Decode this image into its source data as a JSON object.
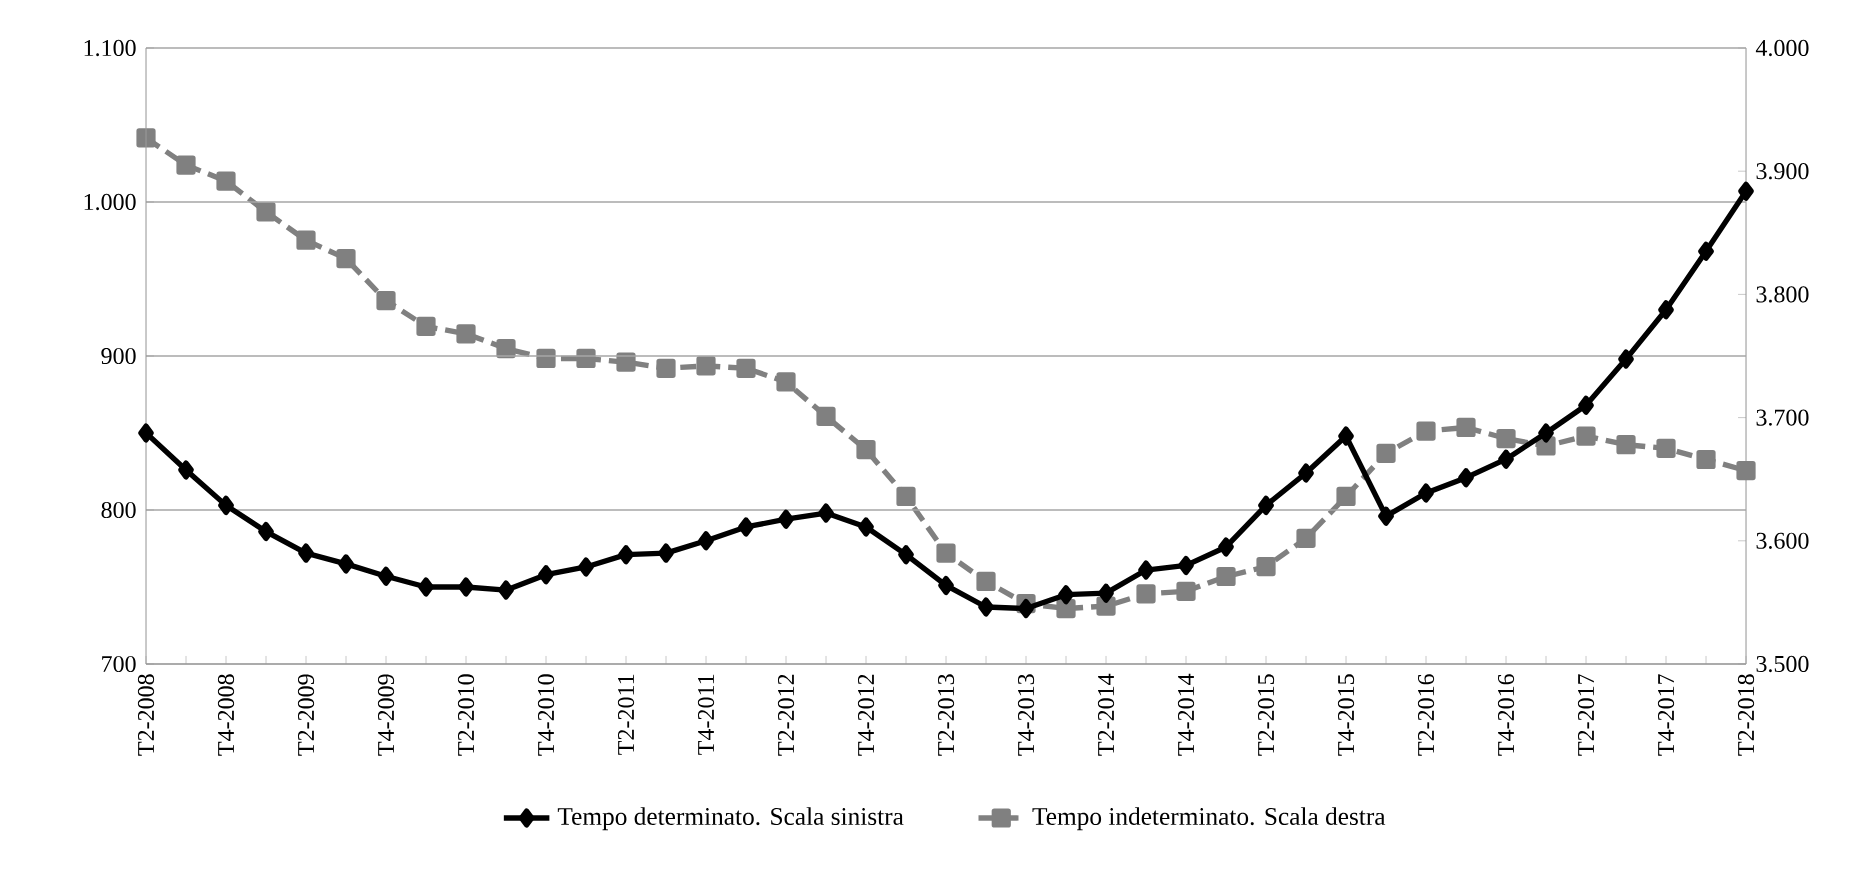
{
  "chart_data": {
    "type": "line",
    "categories": [
      "T2-2008",
      null,
      "T4-2008",
      null,
      "T2-2009",
      null,
      "T4-2009",
      null,
      "T2-2010",
      null,
      "T4-2010",
      null,
      "T2-2011",
      null,
      "T4-2011",
      null,
      "T2-2012",
      null,
      "T4-2012",
      null,
      "T2-2013",
      null,
      "T4-2013",
      null,
      "T2-2014",
      null,
      "T4-2014",
      null,
      "T2-2015",
      null,
      "T4-2015",
      null,
      "T2-2016",
      null,
      "T4-2016",
      null,
      "T2-2017",
      null,
      "T4-2017",
      null,
      "T2-2018"
    ],
    "series": [
      {
        "name": "Tempo determinato. Scala sinistra",
        "color": "#000000",
        "marker": "diamond",
        "line_style": "solid",
        "values": [
          850,
          826,
          803,
          786,
          772,
          765,
          757,
          750,
          750,
          748,
          758,
          763,
          771,
          772,
          780,
          789,
          794,
          798,
          789,
          771,
          751,
          737,
          736,
          745,
          746,
          761,
          764,
          776,
          803,
          824,
          848,
          796,
          811,
          821,
          833,
          850,
          868,
          898,
          930,
          968,
          1007
        ]
      },
      {
        "name": "Tempo indeterminato. Scala destra",
        "color": "#808080",
        "marker": "square",
        "line_style": "dashed",
        "axis": "y2",
        "values": [
          3927,
          3905,
          3892,
          3867,
          3844,
          3829,
          3795,
          3774,
          3768,
          3756,
          3748,
          3748,
          3745,
          3740,
          3742,
          3740,
          3729,
          3701,
          3674,
          3636,
          3590,
          3567,
          3549,
          3545,
          3547,
          3557,
          3559,
          3571,
          3579,
          3602,
          3636,
          3671,
          3689,
          3692,
          3683,
          3677,
          3685,
          3678,
          3675,
          3666,
          3657
        ]
      }
    ],
    "ylim": [
      700,
      1100
    ],
    "yticks": [
      700,
      800,
      900,
      {
        "value": 1000,
        "label": "1.000"
      },
      {
        "value": 1100,
        "label": "1.100"
      }
    ],
    "y2lim": [
      3500,
      4000
    ],
    "y2ticks": [
      {
        "value": 3500,
        "label": "3.500"
      },
      {
        "value": 3600,
        "label": "3.600"
      },
      {
        "value": 3700,
        "label": "3.700"
      },
      {
        "value": 3800,
        "label": "3.800"
      },
      {
        "value": 3900,
        "label": "3.900"
      },
      {
        "value": 4000,
        "label": "4.000"
      }
    ],
    "grid": "y",
    "legend": "bottom"
  }
}
